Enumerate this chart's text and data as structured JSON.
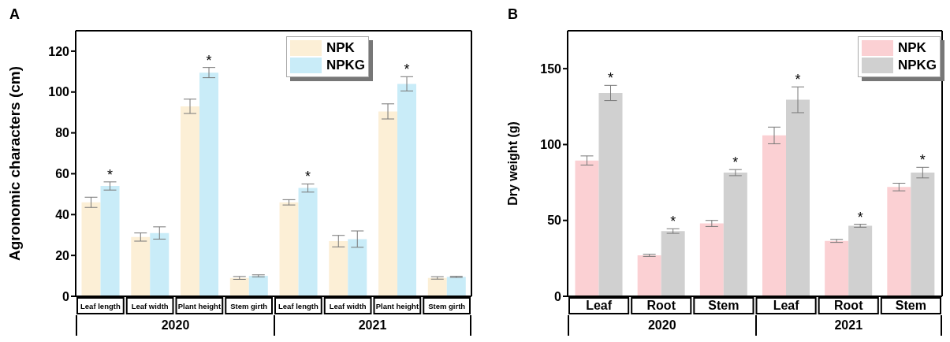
{
  "chart_data": [
    {
      "type": "bar",
      "title": "A",
      "ylabel": "Agronomic characters (cm)",
      "categories": [
        "Leaf length",
        "Leaf width",
        "Plant height",
        "Stem girth",
        "Leaf length",
        "Leaf width",
        "Plant height",
        "Stem girth"
      ],
      "ylim": [
        0,
        130
      ],
      "yticks": [
        0,
        20,
        40,
        60,
        80,
        100,
        120
      ],
      "legend": "top right",
      "grid": false,
      "annotations": [
        "2020",
        "2021"
      ],
      "series": [
        {
          "name": "NPK",
          "color": "#fcefd6",
          "values": [
            46,
            29,
            93,
            9,
            46,
            27,
            90.5,
            9
          ],
          "errors": [
            2.5,
            2,
            3.5,
            0.7,
            1.3,
            2.8,
            3.7,
            0.6
          ]
        },
        {
          "name": "NPKG",
          "color": "#c9ecf8",
          "values": [
            54,
            31,
            109.5,
            10,
            53,
            28,
            104,
            9.5
          ],
          "errors": [
            2,
            3,
            2.5,
            0.5,
            2,
            4,
            3.5,
            0.3
          ],
          "value_labels": [
            "*",
            null,
            "*",
            null,
            "*",
            null,
            "*",
            null
          ]
        }
      ]
    },
    {
      "type": "bar",
      "title": "B",
      "ylabel": "Dry weight (g)",
      "categories": [
        "Leaf",
        "Root",
        "Stem",
        "Leaf",
        "Root",
        "Stem"
      ],
      "ylim": [
        0,
        175
      ],
      "yticks": [
        0,
        50,
        100,
        150
      ],
      "legend": "top right",
      "grid": false,
      "annotations": [
        "2020",
        "2021"
      ],
      "series": [
        {
          "name": "NPK",
          "color": "#fbd0d3",
          "values": [
            89.5,
            27,
            48,
            106,
            36.5,
            72
          ],
          "errors": [
            3,
            0.7,
            2,
            5.5,
            1,
            2.5
          ]
        },
        {
          "name": "NPKG",
          "color": "#d0d0d0",
          "values": [
            134,
            43,
            81.5,
            129.5,
            46.5,
            81.5
          ],
          "errors": [
            5,
            1.5,
            2,
            8.5,
            1,
            3.5
          ],
          "value_labels": [
            "*",
            "*",
            "*",
            "*",
            "*",
            "*"
          ]
        }
      ]
    }
  ]
}
